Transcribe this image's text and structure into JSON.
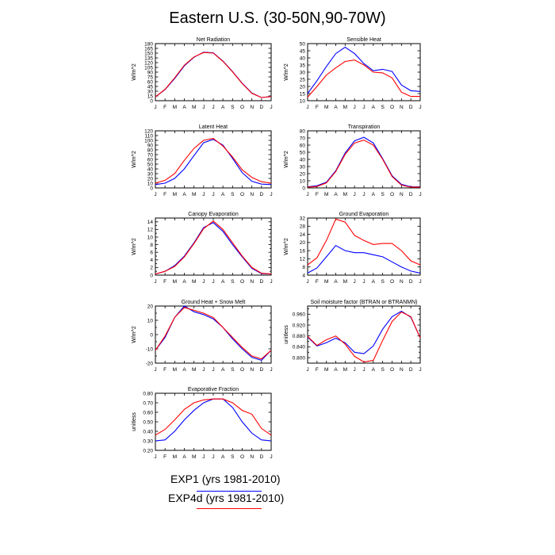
{
  "title": "Eastern U.S. (30-50N,90-70W)",
  "months": [
    "J",
    "F",
    "M",
    "A",
    "M",
    "J",
    "J",
    "A",
    "S",
    "O",
    "N",
    "D",
    "J"
  ],
  "colors": {
    "exp1": "#0000ff",
    "exp4d": "#ff0000"
  },
  "legend": [
    {
      "label": "EXP1 (yrs 1981-2010)",
      "color": "#0000ff"
    },
    {
      "label": "EXP4d (yrs 1981-2010)",
      "color": "#ff0000"
    }
  ],
  "chart_data": [
    {
      "type": "line",
      "title": "Net Radiation",
      "ylabel": "W/m^2",
      "xlabel": "",
      "ylim": [
        0,
        180
      ],
      "yticks": [
        "0",
        "15",
        "30",
        "45",
        "60",
        "75",
        "90",
        "105",
        "120",
        "135",
        "150",
        "165",
        "180"
      ],
      "yticks_values": [
        0,
        15,
        30,
        45,
        60,
        75,
        90,
        105,
        120,
        135,
        150,
        165,
        180
      ],
      "series": [
        {
          "name": "EXP1 (yrs 1981-2010)",
          "color": "#0000ff",
          "values": [
            12,
            35,
            70,
            110,
            137,
            153,
            151,
            125,
            92,
            55,
            24,
            10,
            13
          ]
        },
        {
          "name": "EXP4d (yrs 1981-2010)",
          "color": "#ff0000",
          "values": [
            12,
            36,
            72,
            112,
            138,
            152,
            150,
            124,
            91,
            54,
            23,
            10,
            13
          ]
        }
      ]
    },
    {
      "type": "line",
      "title": "Sensible Heat",
      "ylabel": "W/m^2",
      "xlabel": "",
      "ylim": [
        10,
        50
      ],
      "yticks": [
        "10",
        "15",
        "20",
        "25",
        "30",
        "35",
        "40",
        "45",
        "50"
      ],
      "yticks_values": [
        10,
        15,
        20,
        25,
        30,
        35,
        40,
        45,
        50
      ],
      "series": [
        {
          "name": "EXP1 (yrs 1981-2010)",
          "color": "#0000ff",
          "values": [
            15,
            24,
            34,
            43,
            47.5,
            43,
            36,
            31,
            32,
            30.5,
            21,
            17,
            16.5
          ]
        },
        {
          "name": "EXP4d (yrs 1981-2010)",
          "color": "#ff0000",
          "values": [
            12.5,
            20,
            28,
            33,
            37.5,
            38.5,
            35,
            30,
            29.5,
            26,
            16,
            13,
            13
          ]
        }
      ]
    },
    {
      "type": "line",
      "title": "Latent Heat",
      "ylabel": "W/m^2",
      "xlabel": "",
      "ylim": [
        0,
        120
      ],
      "yticks": [
        "0",
        "10",
        "20",
        "30",
        "40",
        "50",
        "60",
        "70",
        "80",
        "90",
        "100",
        "110",
        "120"
      ],
      "yticks_values": [
        0,
        10,
        20,
        30,
        40,
        50,
        60,
        70,
        80,
        90,
        100,
        110,
        120
      ],
      "series": [
        {
          "name": "EXP1 (yrs 1981-2010)",
          "color": "#0000ff",
          "values": [
            7,
            10,
            20,
            40,
            68,
            95,
            102,
            90,
            62,
            32,
            14,
            8,
            7
          ]
        },
        {
          "name": "EXP4d (yrs 1981-2010)",
          "color": "#ff0000",
          "values": [
            10,
            16,
            30,
            58,
            83,
            100,
            104,
            88,
            65,
            38,
            22,
            13,
            10
          ]
        }
      ]
    },
    {
      "type": "line",
      "title": "Transpiration",
      "ylabel": "W/m^2",
      "xlabel": "",
      "ylim": [
        0,
        80
      ],
      "yticks": [
        "0",
        "10",
        "20",
        "30",
        "40",
        "50",
        "60",
        "70",
        "80"
      ],
      "yticks_values": [
        0,
        10,
        20,
        30,
        40,
        50,
        60,
        70,
        80
      ],
      "series": [
        {
          "name": "EXP1 (yrs 1981-2010)",
          "color": "#0000ff",
          "values": [
            1.5,
            3,
            8,
            24,
            49,
            66,
            71,
            63,
            41,
            17,
            5,
            1.5,
            1.5
          ]
        },
        {
          "name": "EXP4d (yrs 1981-2010)",
          "color": "#ff0000",
          "values": [
            1,
            2,
            7,
            23,
            47,
            63,
            67,
            60,
            40,
            16,
            4,
            1,
            1
          ]
        }
      ]
    },
    {
      "type": "line",
      "title": "Canopy Evaporation",
      "ylabel": "W/m^2",
      "xlabel": "",
      "ylim": [
        0,
        15
      ],
      "yticks": [
        "0",
        "1",
        "2",
        "3",
        "4",
        "5",
        "6",
        "7",
        "8",
        "9",
        "10",
        "11",
        "12",
        "13",
        "14",
        "15"
      ],
      "yticks_labeled": [
        "0",
        "2",
        "4",
        "6",
        "8",
        "10",
        "12",
        "14"
      ],
      "yticks_values": [
        0,
        1,
        2,
        3,
        4,
        5,
        6,
        7,
        8,
        9,
        10,
        11,
        12,
        13,
        14,
        15
      ],
      "series": [
        {
          "name": "EXP1 (yrs 1981-2010)",
          "color": "#0000ff",
          "values": [
            0.3,
            1,
            2.5,
            5,
            8.5,
            12.5,
            13.8,
            11.5,
            8,
            4.8,
            1.8,
            0.4,
            0.3
          ]
        },
        {
          "name": "EXP4d (yrs 1981-2010)",
          "color": "#ff0000",
          "values": [
            0.3,
            1,
            2.3,
            4.8,
            8.3,
            12.2,
            14.2,
            12,
            8.5,
            5,
            2,
            0.5,
            0.3
          ]
        }
      ]
    },
    {
      "type": "line",
      "title": "Ground Evaporation",
      "ylabel": "W/m^2",
      "xlabel": "",
      "ylim": [
        4,
        32
      ],
      "yticks": [
        "4",
        "8",
        "12",
        "16",
        "20",
        "24",
        "28",
        "32"
      ],
      "yticks_values": [
        4,
        8,
        12,
        16,
        20,
        24,
        28,
        32
      ],
      "series": [
        {
          "name": "EXP1 (yrs 1981-2010)",
          "color": "#0000ff",
          "values": [
            5,
            7.5,
            13,
            18.5,
            16,
            15,
            15,
            14,
            13,
            10.5,
            8,
            6,
            5
          ]
        },
        {
          "name": "EXP4d (yrs 1981-2010)",
          "color": "#ff0000",
          "values": [
            9,
            12.5,
            21,
            31.5,
            30,
            23.5,
            21,
            19,
            19.5,
            19.5,
            16,
            11,
            9
          ]
        }
      ]
    },
    {
      "type": "line",
      "title": "Ground Heat + Snow Melt",
      "ylabel": "W/m^2",
      "xlabel": "",
      "ylim": [
        -20,
        20
      ],
      "yticks": [
        "-20",
        "-15",
        "-10",
        "-5",
        "0",
        "5",
        "10",
        "15",
        "20"
      ],
      "yticks_labeled": [
        "-20",
        "-10",
        "0",
        "10",
        "20"
      ],
      "yticks_values": [
        -20,
        -15,
        -10,
        -5,
        0,
        5,
        10,
        15,
        20
      ],
      "series": [
        {
          "name": "EXP1 (yrs 1981-2010)",
          "color": "#0000ff",
          "values": [
            -11,
            -2,
            12,
            20,
            16,
            14,
            11,
            5,
            -3,
            -10,
            -16,
            -18,
            -11
          ]
        },
        {
          "name": "EXP4d (yrs 1981-2010)",
          "color": "#ff0000",
          "values": [
            -11,
            -1,
            12,
            19,
            17,
            15,
            12,
            5,
            -2,
            -9,
            -15,
            -17,
            -11
          ]
        }
      ]
    },
    {
      "type": "line",
      "title": "Soil moisture factor (BTRAN or BTRANMN)",
      "ylabel": "unitless",
      "xlabel": "",
      "ylim": [
        0.78,
        0.99
      ],
      "yticks": [
        "0.800",
        "0.820",
        "0.840",
        "0.860",
        "0.880",
        "0.900",
        "0.920",
        "0.940",
        "0.960",
        "0.980"
      ],
      "yticks_labeled": [
        "0.800",
        "0.840",
        "0.880",
        "0.920",
        "0.960"
      ],
      "yticks_values": [
        0.8,
        0.82,
        0.84,
        0.86,
        0.88,
        0.9,
        0.92,
        0.94,
        0.96,
        0.98
      ],
      "series": [
        {
          "name": "EXP1 (yrs 1981-2010)",
          "color": "#0000ff",
          "values": [
            0.876,
            0.843,
            0.855,
            0.872,
            0.855,
            0.82,
            0.815,
            0.843,
            0.905,
            0.951,
            0.971,
            0.949,
            0.873
          ]
        },
        {
          "name": "EXP4d (yrs 1981-2010)",
          "color": "#ff0000",
          "values": [
            0.878,
            0.845,
            0.866,
            0.88,
            0.85,
            0.805,
            0.784,
            0.79,
            0.864,
            0.933,
            0.968,
            0.951,
            0.873
          ]
        }
      ]
    },
    {
      "type": "line",
      "title": "Evaporative Fraction",
      "ylabel": "unitless",
      "xlabel": "",
      "ylim": [
        0.2,
        0.8
      ],
      "yticks": [
        "0.20",
        "0.30",
        "0.40",
        "0.50",
        "0.60",
        "0.70",
        "0.80"
      ],
      "yticks_values": [
        0.2,
        0.3,
        0.4,
        0.5,
        0.6,
        0.7,
        0.8
      ],
      "series": [
        {
          "name": "EXP1 (yrs 1981-2010)",
          "color": "#0000ff",
          "values": [
            0.3,
            0.31,
            0.4,
            0.52,
            0.62,
            0.7,
            0.74,
            0.74,
            0.65,
            0.5,
            0.38,
            0.31,
            0.3
          ]
        },
        {
          "name": "EXP4d (yrs 1981-2010)",
          "color": "#ff0000",
          "values": [
            0.36,
            0.42,
            0.52,
            0.63,
            0.7,
            0.73,
            0.74,
            0.74,
            0.7,
            0.62,
            0.58,
            0.43,
            0.36
          ]
        }
      ]
    }
  ]
}
